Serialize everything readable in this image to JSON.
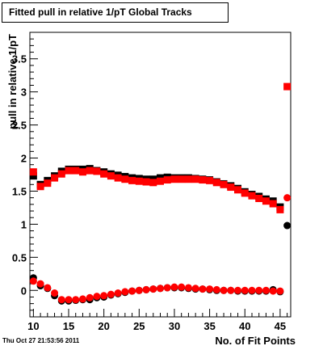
{
  "header": {
    "title": "Fitted pull in relative 1/pT  Global Tracks"
  },
  "footer": {
    "timestamp": "Thu Oct 27 21:53:56 2011"
  },
  "chart_data": {
    "type": "scatter",
    "title": "Fitted pull in relative 1/pT  Global Tracks",
    "xlabel": "No. of Fit Points",
    "ylabel": "pull in relative 1/pT",
    "xlim": [
      9.5,
      46.5
    ],
    "ylim": [
      -0.4,
      3.9
    ],
    "xticks": [
      10,
      15,
      20,
      25,
      30,
      35,
      40,
      45
    ],
    "yticks": [
      0,
      0.5,
      1,
      1.5,
      2,
      2.5,
      3,
      3.5
    ],
    "ytick_labels": [
      "0",
      "0.5",
      "1",
      "1.5",
      "2",
      "2.5",
      "3",
      "3.5"
    ],
    "grid": false,
    "legend": "none",
    "x": [
      10,
      11,
      12,
      13,
      14,
      15,
      16,
      17,
      18,
      19,
      20,
      21,
      22,
      23,
      24,
      25,
      26,
      27,
      28,
      29,
      30,
      31,
      32,
      33,
      34,
      35,
      36,
      37,
      38,
      39,
      40,
      41,
      42,
      43,
      44,
      45,
      46
    ],
    "series": [
      {
        "marker": "square",
        "color": "#000000",
        "values": [
          1.73,
          1.6,
          1.66,
          1.73,
          1.8,
          1.83,
          1.83,
          1.83,
          1.84,
          1.81,
          1.79,
          1.76,
          1.74,
          1.72,
          1.7,
          1.69,
          1.68,
          1.68,
          1.7,
          1.71,
          1.7,
          1.7,
          1.7,
          1.69,
          1.68,
          1.67,
          1.64,
          1.61,
          1.58,
          1.54,
          1.49,
          1.45,
          1.42,
          1.38,
          1.35,
          1.26,
          null
        ]
      },
      {
        "marker": "square",
        "color": "#ff0000",
        "values": [
          1.79,
          1.57,
          1.62,
          1.7,
          1.76,
          1.81,
          1.81,
          1.79,
          1.81,
          1.8,
          1.76,
          1.73,
          1.7,
          1.68,
          1.66,
          1.65,
          1.64,
          1.63,
          1.65,
          1.67,
          1.68,
          1.68,
          1.68,
          1.68,
          1.67,
          1.66,
          1.63,
          1.6,
          1.56,
          1.52,
          1.47,
          1.43,
          1.39,
          1.35,
          1.31,
          1.22,
          3.08
        ]
      },
      {
        "marker": "circle",
        "color": "#000000",
        "values": [
          0.19,
          0.07,
          0.03,
          -0.08,
          -0.16,
          -0.16,
          -0.15,
          -0.14,
          -0.14,
          -0.11,
          -0.1,
          -0.07,
          -0.05,
          -0.03,
          -0.01,
          0.0,
          0.01,
          0.02,
          0.03,
          0.04,
          0.04,
          0.04,
          0.03,
          0.02,
          0.02,
          0.01,
          0.0,
          0.0,
          0.0,
          -0.01,
          -0.01,
          -0.01,
          -0.01,
          -0.01,
          0.01,
          -0.02,
          0.98
        ]
      },
      {
        "marker": "circle",
        "color": "#ff0000",
        "values": [
          0.14,
          0.1,
          0.04,
          -0.04,
          -0.14,
          -0.14,
          -0.14,
          -0.13,
          -0.11,
          -0.09,
          -0.08,
          -0.06,
          -0.04,
          -0.02,
          -0.01,
          0.0,
          0.01,
          0.02,
          0.03,
          0.04,
          0.05,
          0.05,
          0.04,
          0.03,
          0.02,
          0.02,
          0.01,
          0.0,
          0.0,
          0.0,
          0.0,
          0.0,
          0.0,
          0.0,
          -0.01,
          -0.01,
          1.4
        ]
      }
    ]
  }
}
